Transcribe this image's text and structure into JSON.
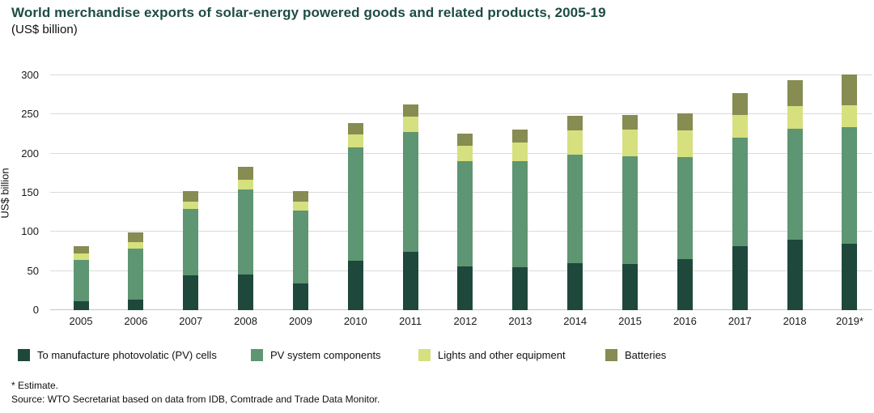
{
  "header": {
    "title": "World merchandise exports of solar-energy powered goods and related products, 2005-19",
    "subtitle": "(US$ billion)"
  },
  "chart_data": {
    "type": "bar",
    "stacked": true,
    "title": "World merchandise exports of solar-energy powered goods and related products, 2005-19",
    "xlabel": "",
    "ylabel": "US$ billion",
    "ylim": [
      0,
      300
    ],
    "yticks": [
      0,
      50,
      100,
      150,
      200,
      250,
      300
    ],
    "grid": true,
    "legend_position": "bottom",
    "categories": [
      "2005",
      "2006",
      "2007",
      "2008",
      "2009",
      "2010",
      "2011",
      "2012",
      "2013",
      "2014",
      "2015",
      "2016",
      "2017",
      "2018",
      "2019*"
    ],
    "series": [
      {
        "name": "To manufacture photovolatic (PV) cells",
        "color": "#1e483b",
        "values": [
          11,
          13,
          45,
          46,
          34,
          63,
          74,
          56,
          55,
          60,
          59,
          65,
          82,
          90,
          85
        ]
      },
      {
        "name": "PV system components",
        "color": "#5e9572",
        "values": [
          53,
          66,
          84,
          108,
          93,
          145,
          154,
          134,
          135,
          139,
          138,
          131,
          138,
          142,
          149
        ]
      },
      {
        "name": "Lights and other equipment",
        "color": "#d6e07e",
        "values": [
          8,
          8,
          10,
          13,
          12,
          16,
          19,
          20,
          24,
          31,
          34,
          34,
          29,
          29,
          28
        ]
      },
      {
        "name": "Batteries",
        "color": "#868c52",
        "values": [
          10,
          12,
          13,
          16,
          13,
          15,
          16,
          16,
          17,
          18,
          18,
          21,
          28,
          33,
          39
        ]
      }
    ],
    "totals": [
      82,
      99,
      152,
      183,
      152,
      239,
      263,
      226,
      231,
      248,
      249,
      251,
      277,
      294,
      301
    ]
  },
  "footnotes": {
    "estimate": "* Estimate.",
    "source": "Source: WTO Secretariat based on data from IDB, Comtrade and Trade Data Monitor."
  }
}
